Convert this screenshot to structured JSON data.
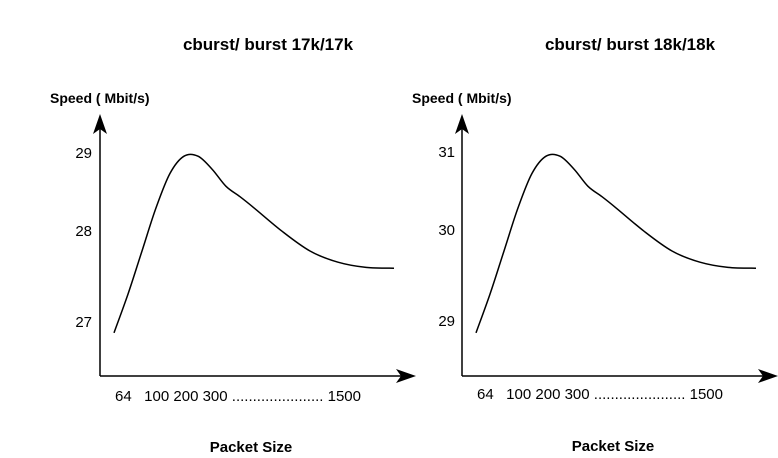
{
  "chart_data": [
    {
      "type": "line",
      "title": "cburst/ burst 17k/17k",
      "ylabel": "Speed ( Mbit/s)",
      "xlabel": "Packet Size",
      "x_tick_text": "64   100 200 300 ...................... 1500",
      "y_ticks": [
        "27",
        "28",
        "29"
      ],
      "ylim": [
        26.4,
        29.3
      ],
      "x": [
        0,
        0.5,
        1,
        1.5,
        2,
        2.5,
        3,
        3.5,
        4,
        4.5,
        5,
        6,
        7,
        8,
        9,
        10
      ],
      "y": [
        26.9,
        27.35,
        27.85,
        28.35,
        28.75,
        28.95,
        28.95,
        28.8,
        28.6,
        28.48,
        28.35,
        28.08,
        27.85,
        27.72,
        27.66,
        27.65
      ],
      "grid": false,
      "line_color": "#000000"
    },
    {
      "type": "line",
      "title": "cburst/ burst 18k/18k",
      "ylabel": "Speed ( Mbit/s)",
      "xlabel": "Packet Size",
      "x_tick_text": "64   100 200 300 ...................... 1500",
      "y_ticks": [
        "29",
        "30",
        "31"
      ],
      "ylim": [
        28.4,
        31.3
      ],
      "x": [
        0,
        0.5,
        1,
        1.5,
        2,
        2.5,
        3,
        3.5,
        4,
        4.5,
        5,
        6,
        7,
        8,
        9,
        10
      ],
      "y": [
        28.9,
        29.35,
        29.85,
        30.35,
        30.75,
        30.95,
        30.95,
        30.8,
        30.6,
        30.48,
        30.35,
        30.08,
        29.85,
        29.72,
        29.66,
        29.65
      ],
      "grid": false,
      "line_color": "#000000"
    }
  ]
}
